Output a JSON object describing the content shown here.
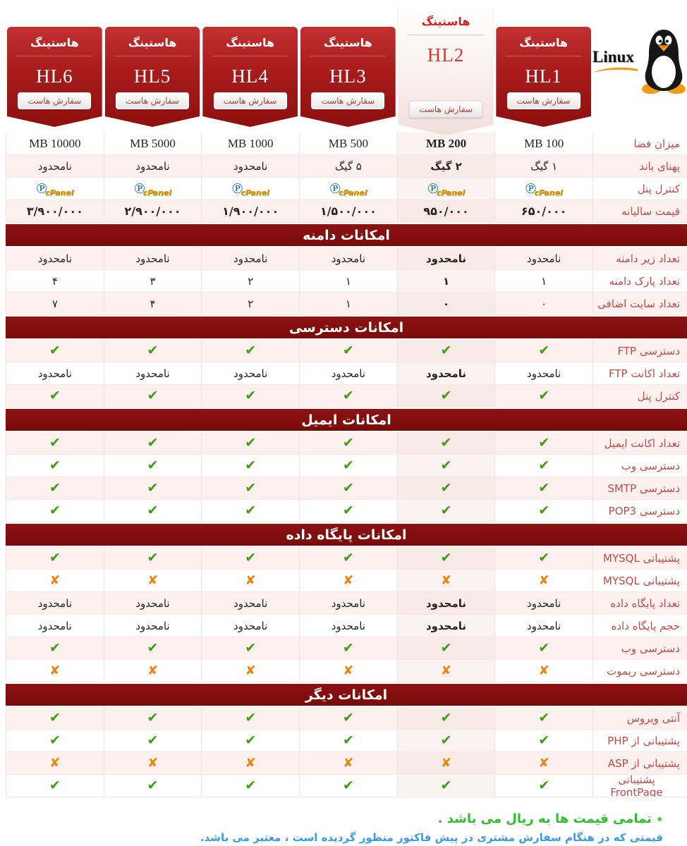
{
  "brand": {
    "linux_label": "Linux"
  },
  "icons": {
    "check": "✔",
    "cross": "✘",
    "cpanel_circle": "℗",
    "cpanel_text": "cPanel"
  },
  "colors": {
    "ribbon_red": "#a81b1b",
    "band_red": "#7a0b0b",
    "label_red": "#c14a46",
    "check_green": "#3da011",
    "cross_orange": "#f0850e",
    "note_green": "#2fbf2f",
    "note_blue": "#3b9ae8"
  },
  "plans": [
    {
      "hosting_label": "هاستینگ",
      "name": "HL1",
      "order_button": "سفارش هاست",
      "highlighted": false
    },
    {
      "hosting_label": "هاستینگ",
      "name": "HL2",
      "order_button": "سفارش هاست",
      "highlighted": true
    },
    {
      "hosting_label": "هاستینگ",
      "name": "HL3",
      "order_button": "سفارش هاست",
      "highlighted": false
    },
    {
      "hosting_label": "هاستینگ",
      "name": "HL4",
      "order_button": "سفارش هاست",
      "highlighted": false
    },
    {
      "hosting_label": "هاستینگ",
      "name": "HL5",
      "order_button": "سفارش هاست",
      "highlighted": false
    },
    {
      "hosting_label": "هاستینگ",
      "name": "HL6",
      "order_button": "سفارش هاست",
      "highlighted": false
    }
  ],
  "table": {
    "sections": [
      {
        "title": null,
        "start_pink": false,
        "rows": [
          {
            "label": "میزان فضا",
            "type": "text",
            "style": "latin",
            "cells": [
              "MB 100",
              "MB 200",
              "MB 500",
              "MB 1000",
              "MB 5000",
              "MB 10000"
            ]
          },
          {
            "label": "پهنای باند",
            "type": "text",
            "style": "",
            "cells": [
              "۱ گیگ",
              "۲ گیگ",
              "۵ گیگ",
              "نامحدود",
              "نامحدود",
              "نامحدود"
            ]
          },
          {
            "label": "کنترل پنل",
            "type": "cpanel",
            "cells": [
              "cpanel",
              "cpanel",
              "cpanel",
              "cpanel",
              "cpanel",
              "cpanel"
            ]
          },
          {
            "label": "قیمت سالیانه",
            "type": "text",
            "style": "price",
            "cells": [
              "۶۵۰/۰۰۰",
              "۹۵۰/۰۰۰",
              "۱/۵۰۰/۰۰۰",
              "۱/۹۰۰/۰۰۰",
              "۲/۹۰۰/۰۰۰",
              "۳/۹۰۰/۰۰۰"
            ]
          }
        ]
      },
      {
        "title": "امکانات دامنه",
        "start_pink": true,
        "rows": [
          {
            "label": "تعداد زیر دامنه",
            "type": "text",
            "style": "",
            "cells": [
              "نامحدود",
              "نامحدود",
              "نامحدود",
              "نامحدود",
              "نامحدود",
              "نامحدود"
            ]
          },
          {
            "label": "تعداد پارک دامنه",
            "type": "text",
            "style": "",
            "cells": [
              "۱",
              "۱",
              "۱",
              "۲",
              "۳",
              "۴"
            ]
          },
          {
            "label": "تعداد سایت اضافی",
            "type": "text",
            "style": "",
            "cells": [
              "۰",
              "۰",
              "۱",
              "۲",
              "۴",
              "۷"
            ]
          }
        ]
      },
      {
        "title": "امکانات دسترسی",
        "start_pink": true,
        "rows": [
          {
            "label": "دسترسی FTP",
            "type": "icons",
            "cells": [
              "check",
              "check",
              "check",
              "check",
              "check",
              "check"
            ]
          },
          {
            "label": "تعداد اکانت FTP",
            "type": "text",
            "style": "",
            "cells": [
              "نامحدود",
              "نامحدود",
              "نامحدود",
              "نامحدود",
              "نامحدود",
              "نامحدود"
            ]
          },
          {
            "label": "کنترل پنل",
            "type": "icons",
            "cells": [
              "check",
              "check",
              "check",
              "check",
              "check",
              "check"
            ]
          }
        ]
      },
      {
        "title": "امکانات ایمیل",
        "start_pink": true,
        "rows": [
          {
            "label": "تعداد اکانت ایمیل",
            "type": "icons",
            "cells": [
              "check",
              "check",
              "check",
              "check",
              "check",
              "check"
            ]
          },
          {
            "label": "دسترسی وب",
            "type": "icons",
            "cells": [
              "check",
              "check",
              "check",
              "check",
              "check",
              "check"
            ]
          },
          {
            "label": "دسترسی SMTP",
            "type": "icons",
            "cells": [
              "check",
              "check",
              "check",
              "check",
              "check",
              "check"
            ]
          },
          {
            "label": "دسترسی POP3",
            "type": "icons",
            "cells": [
              "check",
              "check",
              "check",
              "check",
              "check",
              "check"
            ]
          }
        ]
      },
      {
        "title": "امکانات پایگاه داده",
        "start_pink": true,
        "rows": [
          {
            "label": "پشتیبانی MYSQL",
            "type": "icons",
            "cells": [
              "check",
              "check",
              "check",
              "check",
              "check",
              "check"
            ]
          },
          {
            "label": "پشتیبانی MYSQL",
            "type": "icons",
            "cells": [
              "cross",
              "cross",
              "cross",
              "cross",
              "cross",
              "cross"
            ]
          },
          {
            "label": "تعداد پایگاه داده",
            "type": "text",
            "style": "",
            "cells": [
              "نامحدود",
              "نامحدود",
              "نامحدود",
              "نامحدود",
              "نامحدود",
              "نامحدود"
            ]
          },
          {
            "label": "حجم پایگاه داده",
            "type": "text",
            "style": "",
            "cells": [
              "نامحدود",
              "نامحدود",
              "نامحدود",
              "نامحدود",
              "نامحدود",
              "نامحدود"
            ]
          },
          {
            "label": "دسترسی وب",
            "type": "icons",
            "cells": [
              "check",
              "check",
              "check",
              "check",
              "check",
              "check"
            ]
          },
          {
            "label": "دسترسی ریموت",
            "type": "icons",
            "cells": [
              "cross",
              "cross",
              "cross",
              "cross",
              "cross",
              "cross"
            ]
          }
        ]
      },
      {
        "title": "امکانات دیگر",
        "start_pink": true,
        "rows": [
          {
            "label": "آنتی ویروس",
            "type": "icons",
            "cells": [
              "check",
              "check",
              "check",
              "check",
              "check",
              "check"
            ]
          },
          {
            "label": "پشتیبانی از PHP",
            "type": "icons",
            "cells": [
              "check",
              "check",
              "check",
              "check",
              "check",
              "check"
            ]
          },
          {
            "label": "پشتیبانی از ASP",
            "type": "icons",
            "cells": [
              "cross",
              "cross",
              "cross",
              "cross",
              "cross",
              "cross"
            ]
          },
          {
            "label": "پشتیبانی FrontPage",
            "type": "icons",
            "cells": [
              "check",
              "check",
              "check",
              "check",
              "check",
              "check"
            ]
          }
        ]
      }
    ]
  },
  "footer": {
    "note_green": "٭ تمامی قیمت ها به ریال می باشد .",
    "note_blue": "قیمتی که در هنگام سفارش مشتری در پیش فاکتور منظور گردیده است ، معتبر می باشد."
  }
}
